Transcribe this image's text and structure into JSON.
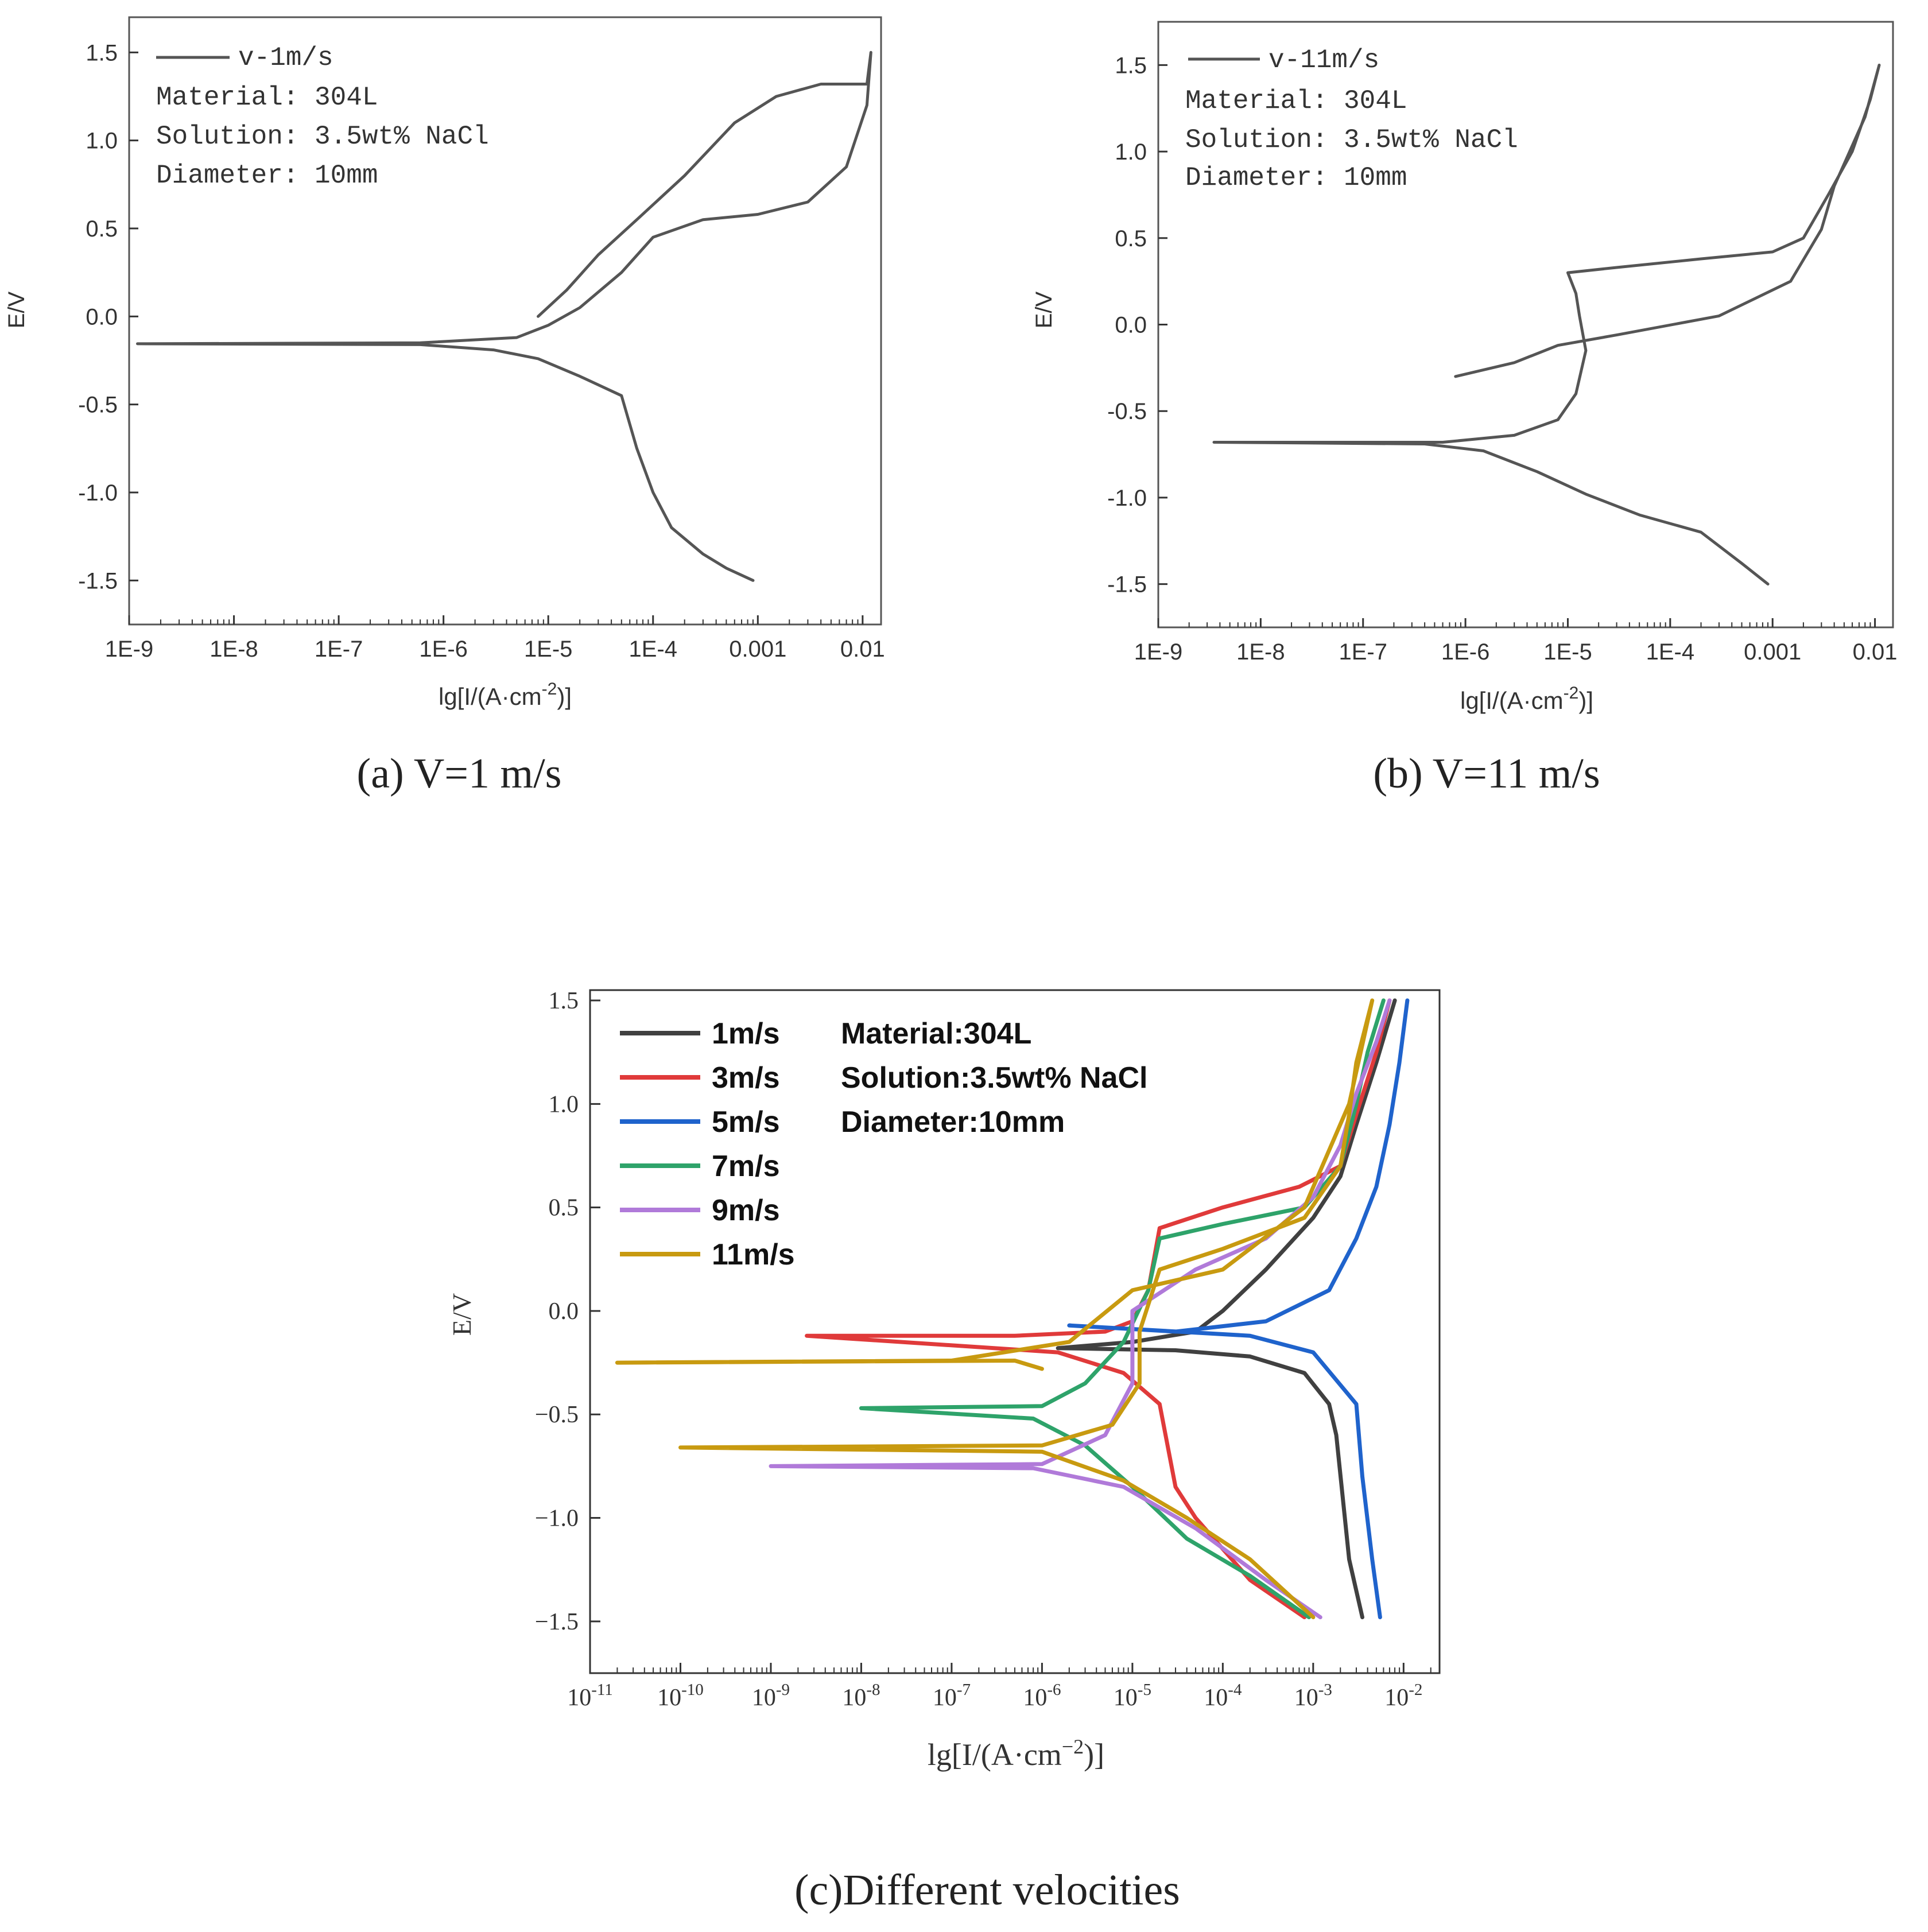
{
  "chart_data": [
    {
      "id": "a",
      "type": "line",
      "caption": "(a) V=1 m/s",
      "xlabel": "lg[I/(A·cm-2)]",
      "ylabel": "E/V",
      "xscale": "log",
      "xlim": [
        1e-09,
        0.015
      ],
      "ylim": [
        -1.75,
        1.7
      ],
      "xtick_labels": [
        "1E-9",
        "1E-8",
        "1E-7",
        "1E-6",
        "1E-5",
        "1E-4",
        "0.001",
        "0.01"
      ],
      "ytick_labels": [
        "-1.5",
        "-1.0",
        "-0.5",
        "0.0",
        "0.5",
        "1.0",
        "1.5"
      ],
      "legend_position": "top-left",
      "legend": [
        "v-1m/s"
      ],
      "annotations": [
        "Material: 304L",
        "Solution: 3.5wt% NaCl",
        "Diameter: 10mm"
      ],
      "series": [
        {
          "name": "v-1m/s",
          "color": "#555555",
          "points": [
            [
              0.0009,
              -1.5
            ],
            [
              0.0005,
              -1.43
            ],
            [
              0.0003,
              -1.35
            ],
            [
              0.00015,
              -1.2
            ],
            [
              0.0001,
              -1.0
            ],
            [
              7e-05,
              -0.75
            ],
            [
              5e-05,
              -0.45
            ],
            [
              2e-05,
              -0.34
            ],
            [
              8e-06,
              -0.24
            ],
            [
              3e-06,
              -0.19
            ],
            [
              6e-07,
              -0.16
            ],
            [
              1.2e-09,
              -0.155
            ],
            [
              6e-07,
              -0.15
            ],
            [
              5e-06,
              -0.12
            ],
            [
              1e-05,
              -0.05
            ],
            [
              2e-05,
              0.05
            ],
            [
              5e-05,
              0.25
            ],
            [
              0.0001,
              0.45
            ],
            [
              0.0003,
              0.55
            ],
            [
              0.001,
              0.58
            ],
            [
              0.003,
              0.65
            ],
            [
              0.007,
              0.85
            ],
            [
              0.011,
              1.2
            ],
            [
              0.012,
              1.5
            ],
            [
              0.011,
              1.32
            ],
            [
              0.004,
              1.32
            ],
            [
              0.0015,
              1.25
            ],
            [
              0.0006,
              1.1
            ],
            [
              0.0002,
              0.8
            ],
            [
              7e-05,
              0.55
            ],
            [
              3e-05,
              0.35
            ],
            [
              1.5e-05,
              0.15
            ],
            [
              8e-06,
              0.0
            ]
          ]
        }
      ]
    },
    {
      "id": "b",
      "type": "line",
      "caption": "(b) V=11 m/s",
      "xlabel": "lg[I/(A·cm-2)]",
      "ylabel": "E/V",
      "xscale": "log",
      "xlim": [
        1e-09,
        0.015
      ],
      "ylim": [
        -1.75,
        1.75
      ],
      "xtick_labels": [
        "1E-9",
        "1E-8",
        "1E-7",
        "1E-6",
        "1E-5",
        "1E-4",
        "0.001",
        "0.01"
      ],
      "ytick_labels": [
        "-1.5",
        "-1.0",
        "-0.5",
        "0.0",
        "0.5",
        "1.0",
        "1.5"
      ],
      "legend_position": "top-left",
      "legend": [
        "v-11m/s"
      ],
      "annotations": [
        "Material: 304L",
        "Solution: 3.5wt% NaCl",
        "Diameter: 10mm"
      ],
      "series": [
        {
          "name": "v-11m/s",
          "color": "#555555",
          "points": [
            [
              0.0009,
              -1.5
            ],
            [
              0.0005,
              -1.38
            ],
            [
              0.0002,
              -1.2
            ],
            [
              5e-05,
              -1.1
            ],
            [
              1.5e-05,
              -0.98
            ],
            [
              5e-06,
              -0.85
            ],
            [
              1.5e-06,
              -0.73
            ],
            [
              4e-07,
              -0.69
            ],
            [
              3.5e-09,
              -0.68
            ],
            [
              6e-07,
              -0.68
            ],
            [
              3e-06,
              -0.64
            ],
            [
              8e-06,
              -0.55
            ],
            [
              1.2e-05,
              -0.4
            ],
            [
              1.5e-05,
              -0.15
            ],
            [
              1.3e-05,
              0.05
            ],
            [
              1.2e-05,
              0.18
            ],
            [
              1e-05,
              0.3
            ],
            [
              3e-05,
              0.33
            ],
            [
              0.0002,
              0.38
            ],
            [
              0.001,
              0.42
            ],
            [
              0.002,
              0.5
            ],
            [
              0.0035,
              0.75
            ],
            [
              0.006,
              1.0
            ],
            [
              0.009,
              1.3
            ],
            [
              0.011,
              1.5
            ],
            [
              0.008,
              1.2
            ],
            [
              0.004,
              0.8
            ],
            [
              0.003,
              0.55
            ],
            [
              0.0015,
              0.25
            ],
            [
              0.0003,
              0.05
            ],
            [
              3e-05,
              -0.06
            ],
            [
              8e-06,
              -0.12
            ],
            [
              3e-06,
              -0.22
            ],
            [
              8e-07,
              -0.3
            ]
          ]
        }
      ]
    },
    {
      "id": "c",
      "type": "line",
      "caption": "(c)Different velocities",
      "xlabel": "lg[I/(A·cm-2)]",
      "ylabel": "E/V",
      "xscale": "log",
      "xlim": [
        1e-11,
        0.025
      ],
      "ylim": [
        -1.75,
        1.55
      ],
      "xtick_labels": [
        "10",
        "10",
        "10",
        "10",
        "10",
        "10",
        "10",
        "10",
        "10",
        "10"
      ],
      "xtick_exponents": [
        "-11",
        "-10",
        "-9",
        "-8",
        "-7",
        "-6",
        "-5",
        "-4",
        "-3",
        "-2"
      ],
      "ytick_labels": [
        "−1.5",
        "−1.0",
        "−0.5",
        "0.0",
        "0.5",
        "1.0",
        "1.5"
      ],
      "legend_position": "top-left",
      "annotations": [
        "Material:304L",
        "Solution:3.5wt% NaCl",
        "Diameter:10mm"
      ],
      "series": [
        {
          "name": "1m/s",
          "color": "#404040",
          "points": [
            [
              0.0035,
              -1.48
            ],
            [
              0.0025,
              -1.2
            ],
            [
              0.0018,
              -0.6
            ],
            [
              0.0015,
              -0.45
            ],
            [
              0.0008,
              -0.3
            ],
            [
              0.0002,
              -0.22
            ],
            [
              3e-05,
              -0.19
            ],
            [
              1.5e-06,
              -0.18
            ],
            [
              1e-05,
              -0.15
            ],
            [
              5e-05,
              -0.1
            ],
            [
              0.0001,
              0.0
            ],
            [
              0.0003,
              0.2
            ],
            [
              0.001,
              0.45
            ],
            [
              0.002,
              0.65
            ],
            [
              0.003,
              0.9
            ],
            [
              0.005,
              1.2
            ],
            [
              0.008,
              1.5
            ]
          ]
        },
        {
          "name": "3m/s",
          "color": "#e03a3a",
          "points": [
            [
              0.0008,
              -1.48
            ],
            [
              0.0002,
              -1.3
            ],
            [
              5e-05,
              -1.0
            ],
            [
              3e-05,
              -0.85
            ],
            [
              2e-05,
              -0.45
            ],
            [
              8e-06,
              -0.3
            ],
            [
              1.5e-06,
              -0.2
            ],
            [
              2.5e-09,
              -0.12
            ],
            [
              5e-07,
              -0.12
            ],
            [
              5e-06,
              -0.1
            ],
            [
              1e-05,
              -0.05
            ],
            [
              1.5e-05,
              0.1
            ],
            [
              2e-05,
              0.4
            ],
            [
              0.0001,
              0.5
            ],
            [
              0.0007,
              0.6
            ],
            [
              0.002,
              0.7
            ],
            [
              0.003,
              0.95
            ],
            [
              0.005,
              1.25
            ],
            [
              0.007,
              1.5
            ]
          ]
        },
        {
          "name": "5m/s",
          "color": "#1f63cc",
          "points": [
            [
              0.0055,
              -1.48
            ],
            [
              0.0045,
              -1.2
            ],
            [
              0.0035,
              -0.8
            ],
            [
              0.003,
              -0.45
            ],
            [
              0.001,
              -0.2
            ],
            [
              0.0002,
              -0.12
            ],
            [
              2e-06,
              -0.07
            ],
            [
              3e-05,
              -0.1
            ],
            [
              0.0003,
              -0.05
            ],
            [
              0.0015,
              0.1
            ],
            [
              0.003,
              0.35
            ],
            [
              0.005,
              0.6
            ],
            [
              0.007,
              0.9
            ],
            [
              0.009,
              1.2
            ],
            [
              0.011,
              1.5
            ]
          ]
        },
        {
          "name": "7m/s",
          "color": "#2ea36a",
          "points": [
            [
              0.0009,
              -1.48
            ],
            [
              0.0002,
              -1.28
            ],
            [
              4e-05,
              -1.1
            ],
            [
              1e-05,
              -0.85
            ],
            [
              3e-06,
              -0.65
            ],
            [
              8e-07,
              -0.52
            ],
            [
              1e-08,
              -0.47
            ],
            [
              1e-06,
              -0.46
            ],
            [
              3e-06,
              -0.35
            ],
            [
              8e-06,
              -0.15
            ],
            [
              1.5e-05,
              0.1
            ],
            [
              2e-05,
              0.35
            ],
            [
              0.0001,
              0.42
            ],
            [
              0.0008,
              0.5
            ],
            [
              0.002,
              0.7
            ],
            [
              0.003,
              1.0
            ],
            [
              0.004,
              1.25
            ],
            [
              0.006,
              1.5
            ]
          ]
        },
        {
          "name": "9m/s",
          "color": "#b07ad9",
          "points": [
            [
              0.0012,
              -1.48
            ],
            [
              0.0003,
              -1.3
            ],
            [
              5e-05,
              -1.05
            ],
            [
              8e-06,
              -0.85
            ],
            [
              8e-07,
              -0.76
            ],
            [
              1e-09,
              -0.75
            ],
            [
              1e-06,
              -0.74
            ],
            [
              5e-06,
              -0.6
            ],
            [
              1e-05,
              -0.35
            ],
            [
              1e-05,
              0.0
            ],
            [
              5e-05,
              0.2
            ],
            [
              0.0003,
              0.35
            ],
            [
              0.001,
              0.55
            ],
            [
              0.002,
              0.8
            ],
            [
              0.003,
              1.05
            ],
            [
              0.005,
              1.3
            ],
            [
              0.007,
              1.5
            ]
          ]
        },
        {
          "name": "11m/s",
          "color": "#c89a10",
          "points": [
            [
              0.001,
              -1.48
            ],
            [
              0.0002,
              -1.2
            ],
            [
              4e-05,
              -1.0
            ],
            [
              8e-06,
              -0.82
            ],
            [
              1e-06,
              -0.68
            ],
            [
              1e-10,
              -0.66
            ],
            [
              1e-06,
              -0.65
            ],
            [
              6e-06,
              -0.55
            ],
            [
              1.2e-05,
              -0.35
            ],
            [
              1.2e-05,
              -0.1
            ],
            [
              2e-05,
              0.2
            ],
            [
              0.0001,
              0.3
            ],
            [
              0.0008,
              0.45
            ],
            [
              0.002,
              0.7
            ],
            [
              0.0025,
              0.95
            ],
            [
              0.003,
              1.2
            ],
            [
              0.0045,
              1.5
            ],
            [
              0.0025,
              1.0
            ],
            [
              0.0008,
              0.5
            ],
            [
              0.0001,
              0.2
            ],
            [
              1e-05,
              0.1
            ],
            [
              2e-06,
              -0.15
            ],
            [
              1e-07,
              -0.24
            ],
            [
              2e-11,
              -0.25
            ],
            [
              5e-07,
              -0.24
            ],
            [
              1e-06,
              -0.28
            ]
          ]
        }
      ]
    }
  ]
}
